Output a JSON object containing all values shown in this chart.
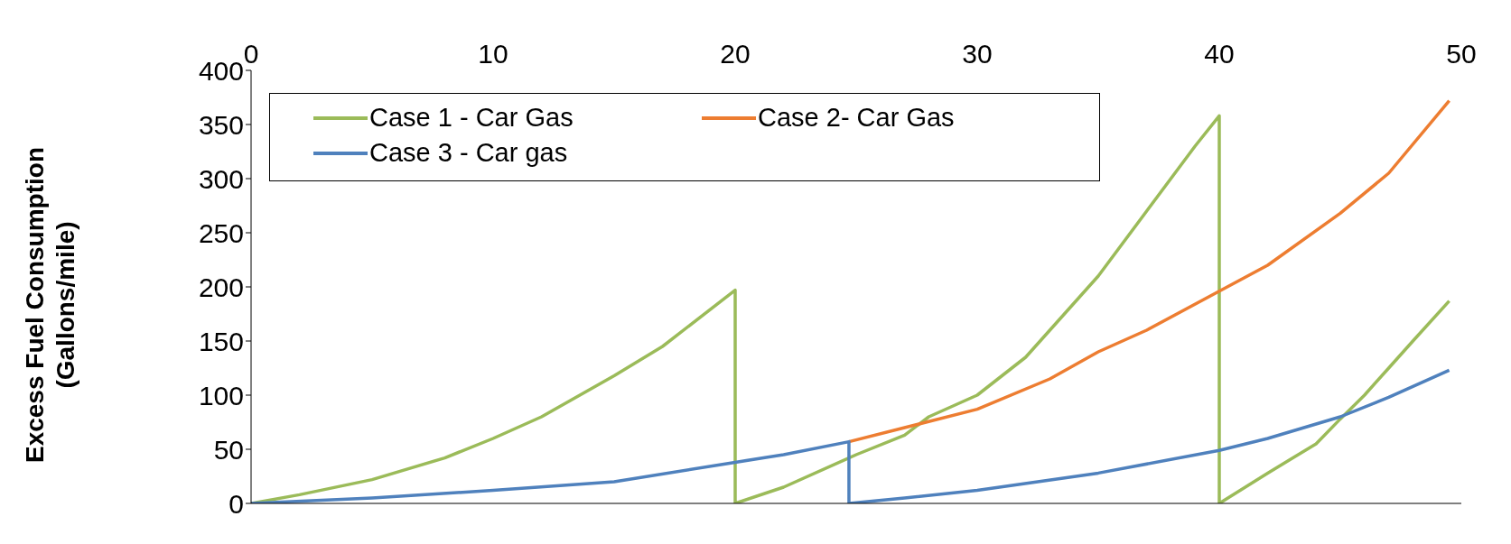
{
  "chart_data": {
    "type": "line",
    "ylabel": "Excess Fuel Consumption\n(Gallons/mile)",
    "xlim": [
      0,
      50
    ],
    "xticks": [
      0,
      10,
      20,
      30,
      40,
      50
    ],
    "ylim": [
      0,
      400
    ],
    "yticks": [
      0,
      50,
      100,
      150,
      200,
      250,
      300,
      350,
      400
    ],
    "legend": "top left",
    "marker": "none",
    "line_style": "solid",
    "series": [
      {
        "name": "Case 1 - Car Gas",
        "color": "#9bbb59",
        "x": [
          0,
          2,
          5,
          8,
          10,
          12,
          15,
          17,
          20,
          20,
          22,
          25,
          27,
          28,
          30,
          32,
          34,
          35,
          37,
          39,
          40,
          40,
          42,
          44,
          45,
          46,
          47,
          48,
          49.5
        ],
        "values": [
          0,
          8,
          22,
          42,
          60,
          80,
          118,
          145,
          197,
          0,
          15,
          45,
          63,
          80,
          100,
          135,
          185,
          210,
          270,
          330,
          358,
          0,
          28,
          55,
          78,
          100,
          125,
          150,
          187
        ]
      },
      {
        "name": "Case 2- Car Gas",
        "color": "#ed7d31",
        "x": [
          24.7,
          27,
          30,
          33,
          35,
          37,
          40,
          42,
          45,
          47,
          49.5
        ],
        "values": [
          57,
          70,
          87,
          115,
          140,
          160,
          196,
          220,
          268,
          305,
          372
        ]
      },
      {
        "name": "Case 3 - Car gas",
        "color": "#4f81bd",
        "x": [
          0,
          5,
          10,
          15,
          20,
          22,
          24.7,
          24.7,
          27,
          30,
          35,
          40,
          42,
          45,
          47,
          49.5
        ],
        "values": [
          0,
          5,
          12,
          20,
          38,
          45,
          57,
          0,
          5,
          12,
          28,
          49,
          60,
          80,
          98,
          123
        ]
      }
    ]
  }
}
